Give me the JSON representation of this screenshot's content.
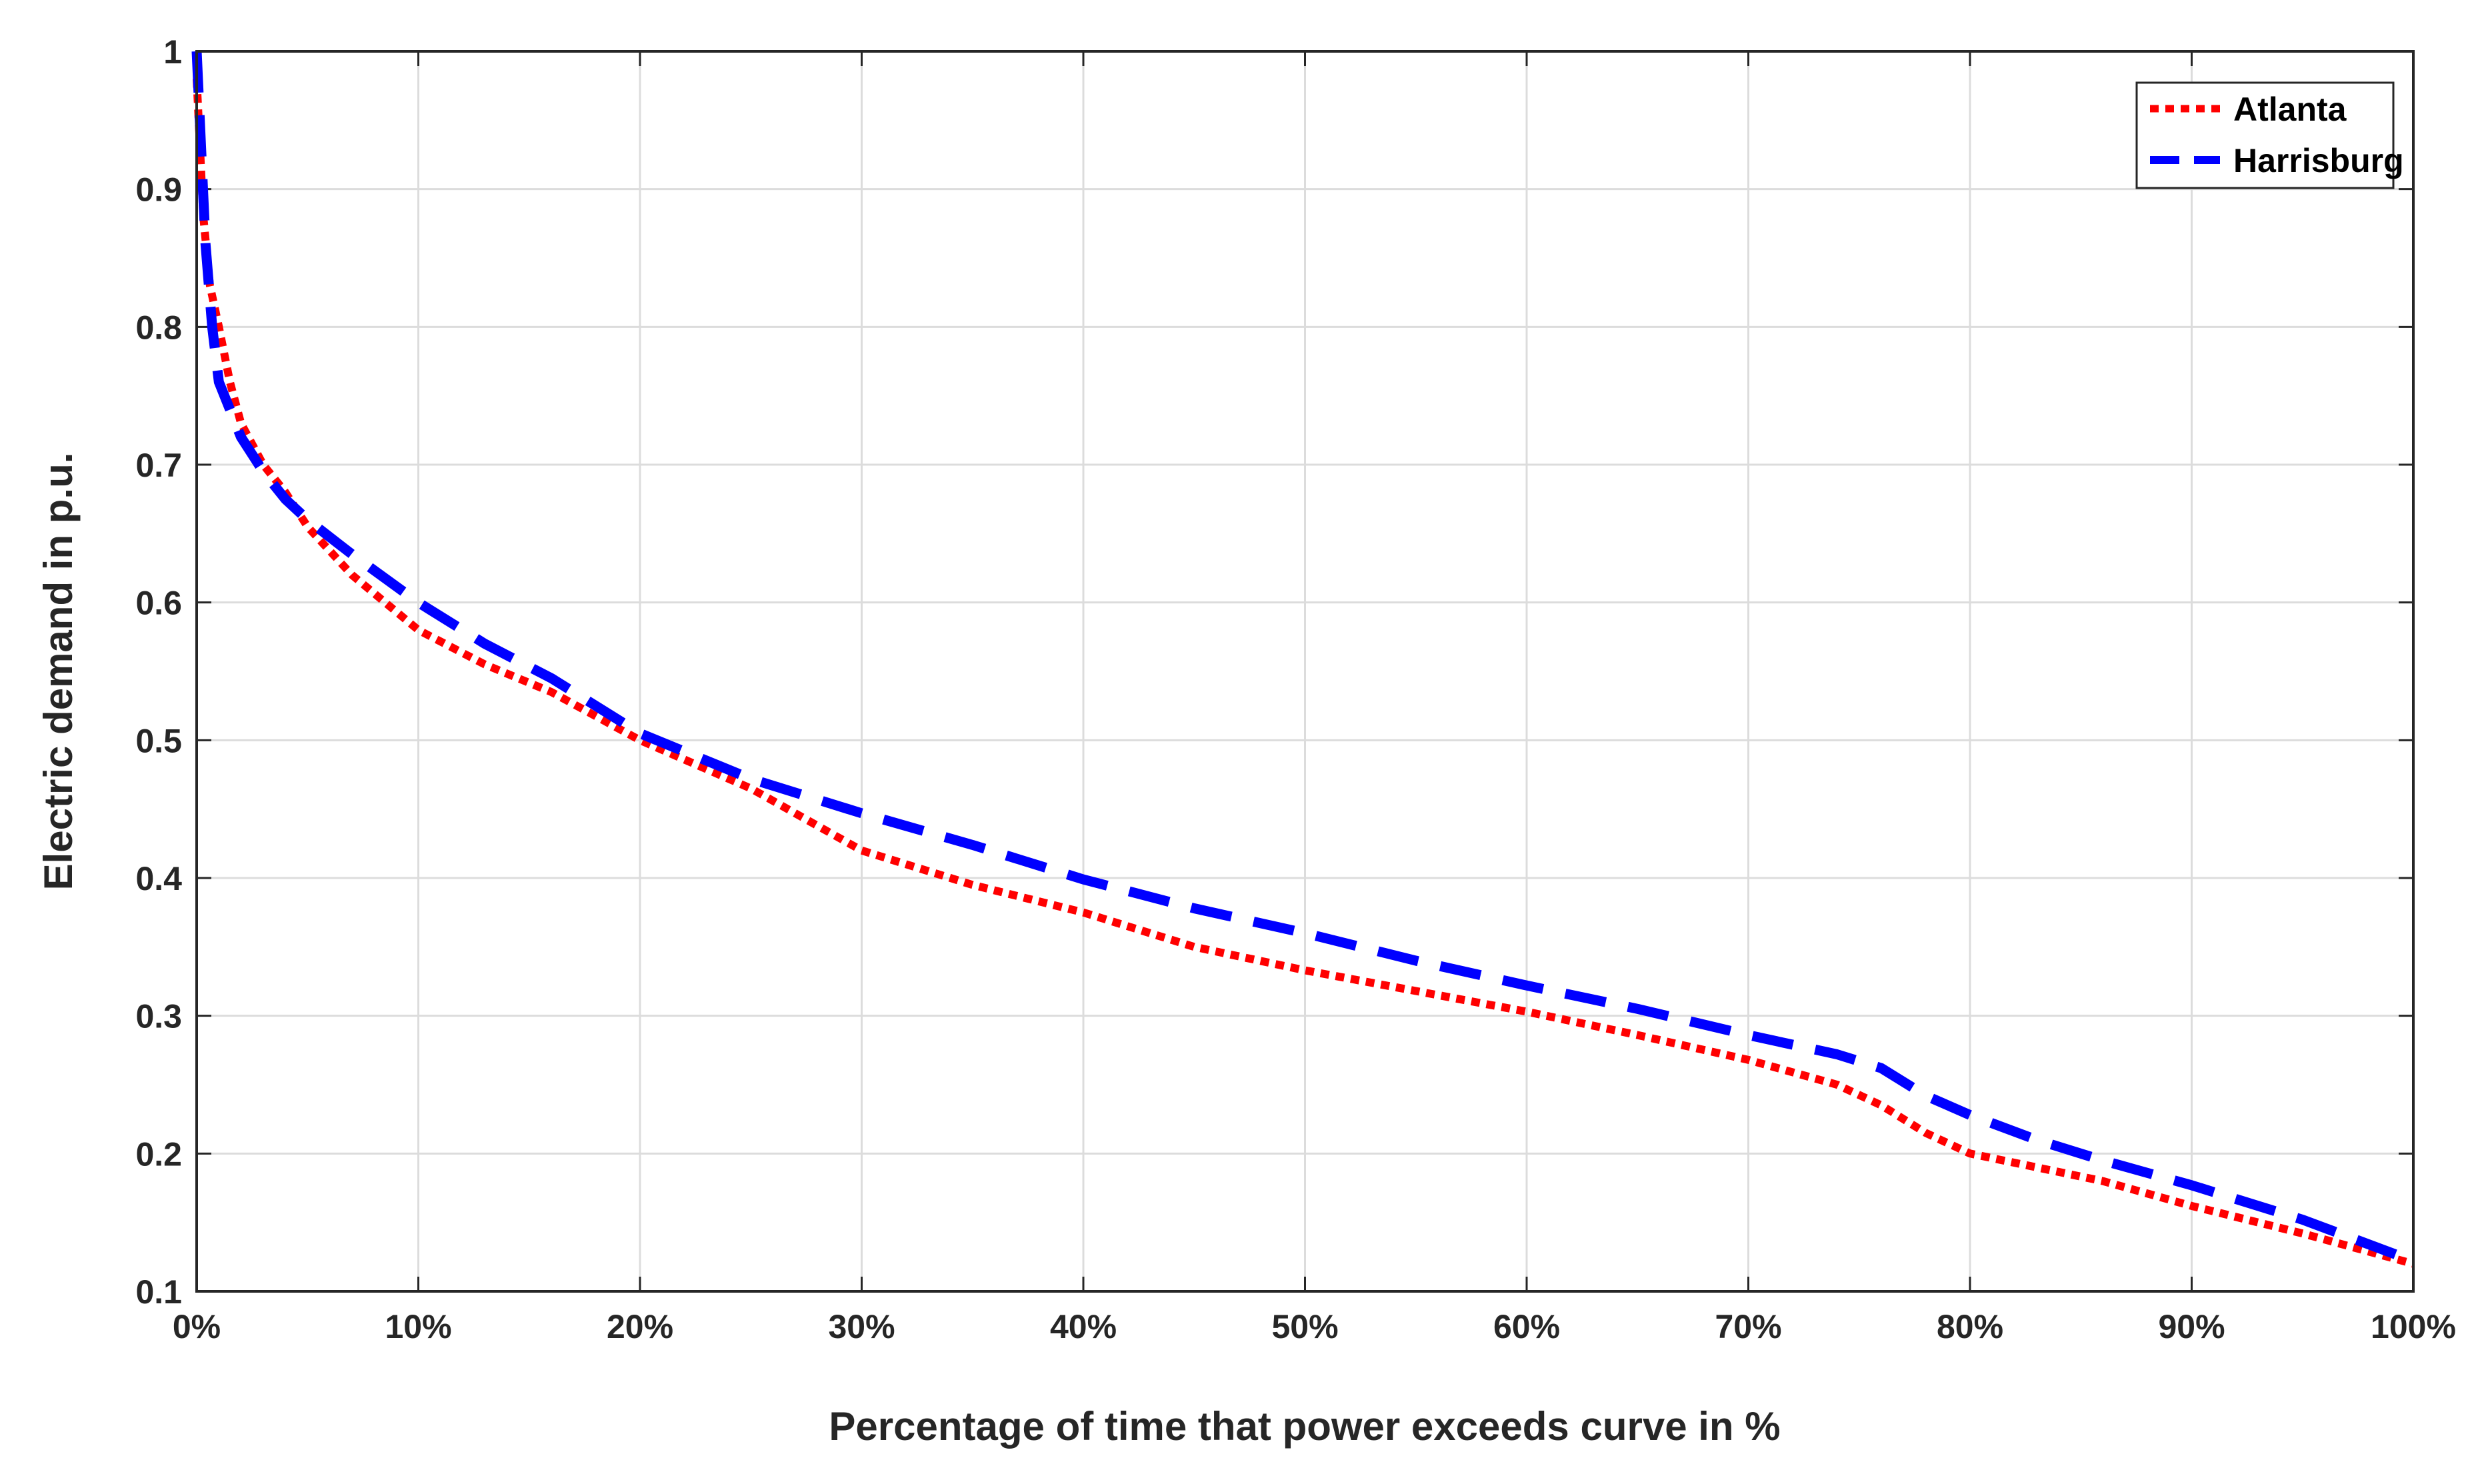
{
  "chart_data": {
    "type": "line",
    "title": "",
    "xlabel": "Percentage of time that power exceeds curve in %",
    "ylabel": "Electric demand in p.u.",
    "xlim": [
      0,
      100
    ],
    "ylim": [
      0.1,
      1
    ],
    "x_ticks": [
      0,
      10,
      20,
      30,
      40,
      50,
      60,
      70,
      80,
      90,
      100
    ],
    "x_tick_labels": [
      "0%",
      "10%",
      "20%",
      "30%",
      "40%",
      "50%",
      "60%",
      "70%",
      "80%",
      "90%",
      "100%"
    ],
    "y_ticks": [
      0.1,
      0.2,
      0.3,
      0.4,
      0.5,
      0.6,
      0.7,
      0.8,
      0.9,
      1
    ],
    "y_tick_labels": [
      "0.1",
      "0.2",
      "0.3",
      "0.4",
      "0.5",
      "0.6",
      "0.7",
      "0.8",
      "0.9",
      "1"
    ],
    "grid": true,
    "legend_position": "top-right",
    "series": [
      {
        "name": "Atlanta",
        "color": "#ff0000",
        "style": "dotted",
        "x": [
          0,
          0.3,
          0.6,
          1,
          1.5,
          2,
          3,
          4,
          5,
          7,
          10,
          13,
          16,
          20,
          25,
          30,
          35,
          40,
          45,
          50,
          55,
          60,
          65,
          70,
          74,
          76,
          78,
          80,
          83,
          86,
          90,
          95,
          100
        ],
        "y": [
          0.98,
          0.88,
          0.83,
          0.8,
          0.76,
          0.73,
          0.7,
          0.68,
          0.655,
          0.62,
          0.58,
          0.555,
          0.535,
          0.5,
          0.465,
          0.42,
          0.395,
          0.375,
          0.35,
          0.333,
          0.318,
          0.303,
          0.286,
          0.268,
          0.25,
          0.235,
          0.215,
          0.2,
          0.19,
          0.18,
          0.162,
          0.142,
          0.12
        ]
      },
      {
        "name": "Harrisburg",
        "color": "#0000ff",
        "style": "dashed",
        "x": [
          0,
          0.2,
          0.4,
          0.7,
          1,
          1.5,
          2,
          3,
          4,
          5,
          7,
          10,
          13,
          16,
          20,
          25,
          30,
          35,
          40,
          45,
          50,
          55,
          60,
          65,
          70,
          74,
          76,
          78,
          80,
          83,
          86,
          90,
          95,
          100
        ],
        "y": [
          1,
          0.93,
          0.86,
          0.8,
          0.76,
          0.74,
          0.72,
          0.695,
          0.675,
          0.66,
          0.635,
          0.6,
          0.57,
          0.545,
          0.505,
          0.472,
          0.447,
          0.424,
          0.399,
          0.378,
          0.36,
          0.34,
          0.322,
          0.305,
          0.286,
          0.272,
          0.262,
          0.242,
          0.228,
          0.21,
          0.195,
          0.177,
          0.152,
          0.122
        ]
      }
    ]
  }
}
